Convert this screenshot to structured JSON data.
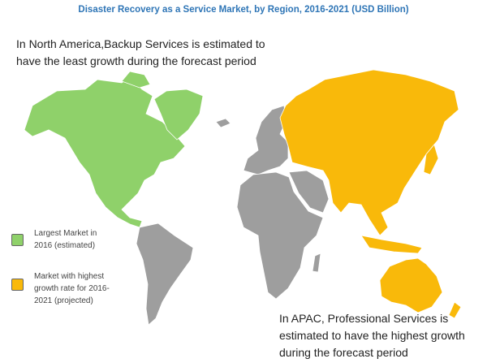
{
  "title": "Disaster Recovery as a Service Market, by Region, 2016-2021 (USD Billion)",
  "annotations": [
    {
      "text": "In North America,Backup Services is estimated to have the least growth during the forecast period"
    },
    {
      "text": "In APAC, Professional Services is estimated to have the highest growth during the forecast period"
    }
  ],
  "legend": [
    {
      "label": "Largest Market in 2016 (estimated)",
      "color": "#8fd16a"
    },
    {
      "label": "Market with highest growth rate for 2016-2021 (projected)",
      "color": "#f9b90a"
    }
  ],
  "other_color": "#9e9e9e"
}
